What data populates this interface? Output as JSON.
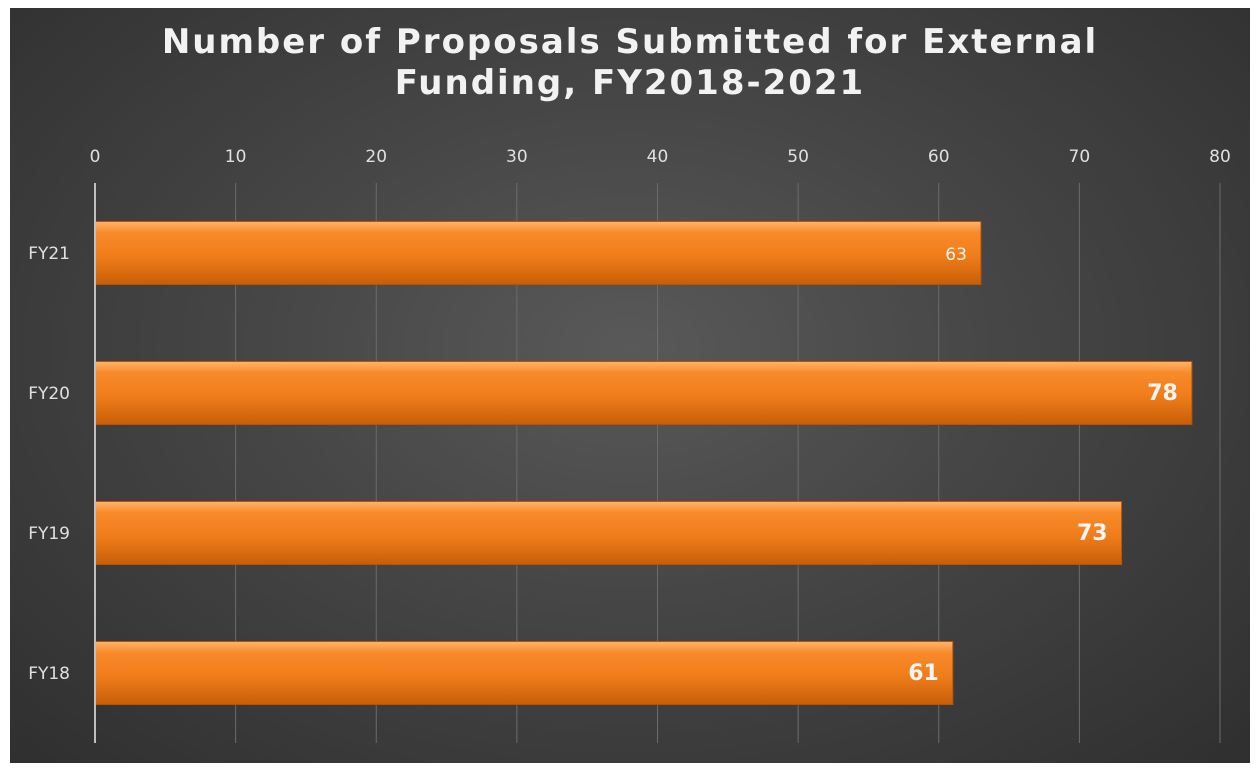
{
  "chart_data": {
    "type": "bar",
    "orientation": "horizontal",
    "title_lines": [
      "Number of Proposals Submitted for External",
      "Funding, FY2018-2021"
    ],
    "categories": [
      "FY21",
      "FY20",
      "FY19",
      "FY18"
    ],
    "values": [
      63,
      78,
      73,
      61
    ],
    "data_labels": [
      "63",
      "78",
      "73",
      "61"
    ],
    "xlim": [
      0,
      80
    ],
    "x_ticks": [
      "0",
      "10",
      "20",
      "30",
      "40",
      "50",
      "60",
      "70",
      "80"
    ],
    "x_axis_position": "top",
    "grid": true,
    "bar_color": "#f07d1a",
    "background_color": "#474747"
  }
}
